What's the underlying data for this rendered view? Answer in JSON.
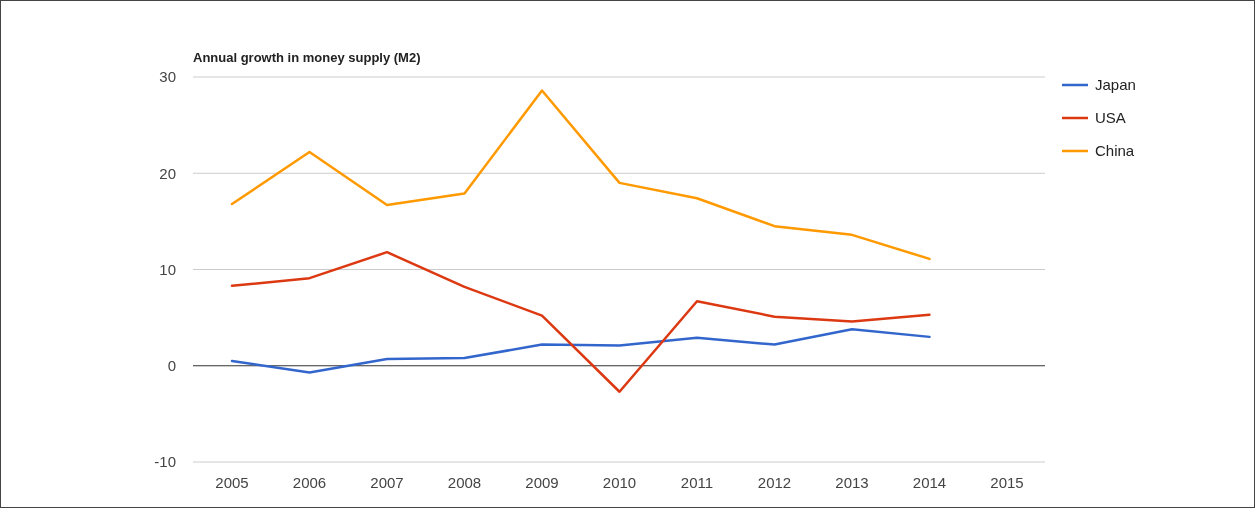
{
  "chart_data": {
    "type": "line",
    "title": "Annual growth in money supply (M2)",
    "categories": [
      "2005",
      "2006",
      "2007",
      "2008",
      "2009",
      "2010",
      "2011",
      "2012",
      "2013",
      "2014",
      "2015"
    ],
    "series": [
      {
        "name": "Japan",
        "color": "#3366cc",
        "values": [
          0.5,
          -0.7,
          0.7,
          0.8,
          2.2,
          2.1,
          2.9,
          2.2,
          3.8,
          3.0,
          null
        ]
      },
      {
        "name": "USA",
        "color": "#dc3912",
        "values": [
          8.3,
          9.1,
          11.8,
          8.2,
          5.2,
          -2.7,
          6.7,
          5.1,
          4.6,
          5.3,
          null
        ]
      },
      {
        "name": "China",
        "color": "#ff9900",
        "values": [
          16.8,
          22.2,
          16.7,
          17.9,
          28.6,
          19.0,
          17.4,
          14.5,
          13.6,
          11.1,
          null
        ]
      }
    ],
    "ylim": [
      -10,
      30
    ],
    "yticks": [
      -10,
      0,
      10,
      20,
      30
    ],
    "grid": "y",
    "legend": "right",
    "marker": "none",
    "line_style": "solid"
  }
}
